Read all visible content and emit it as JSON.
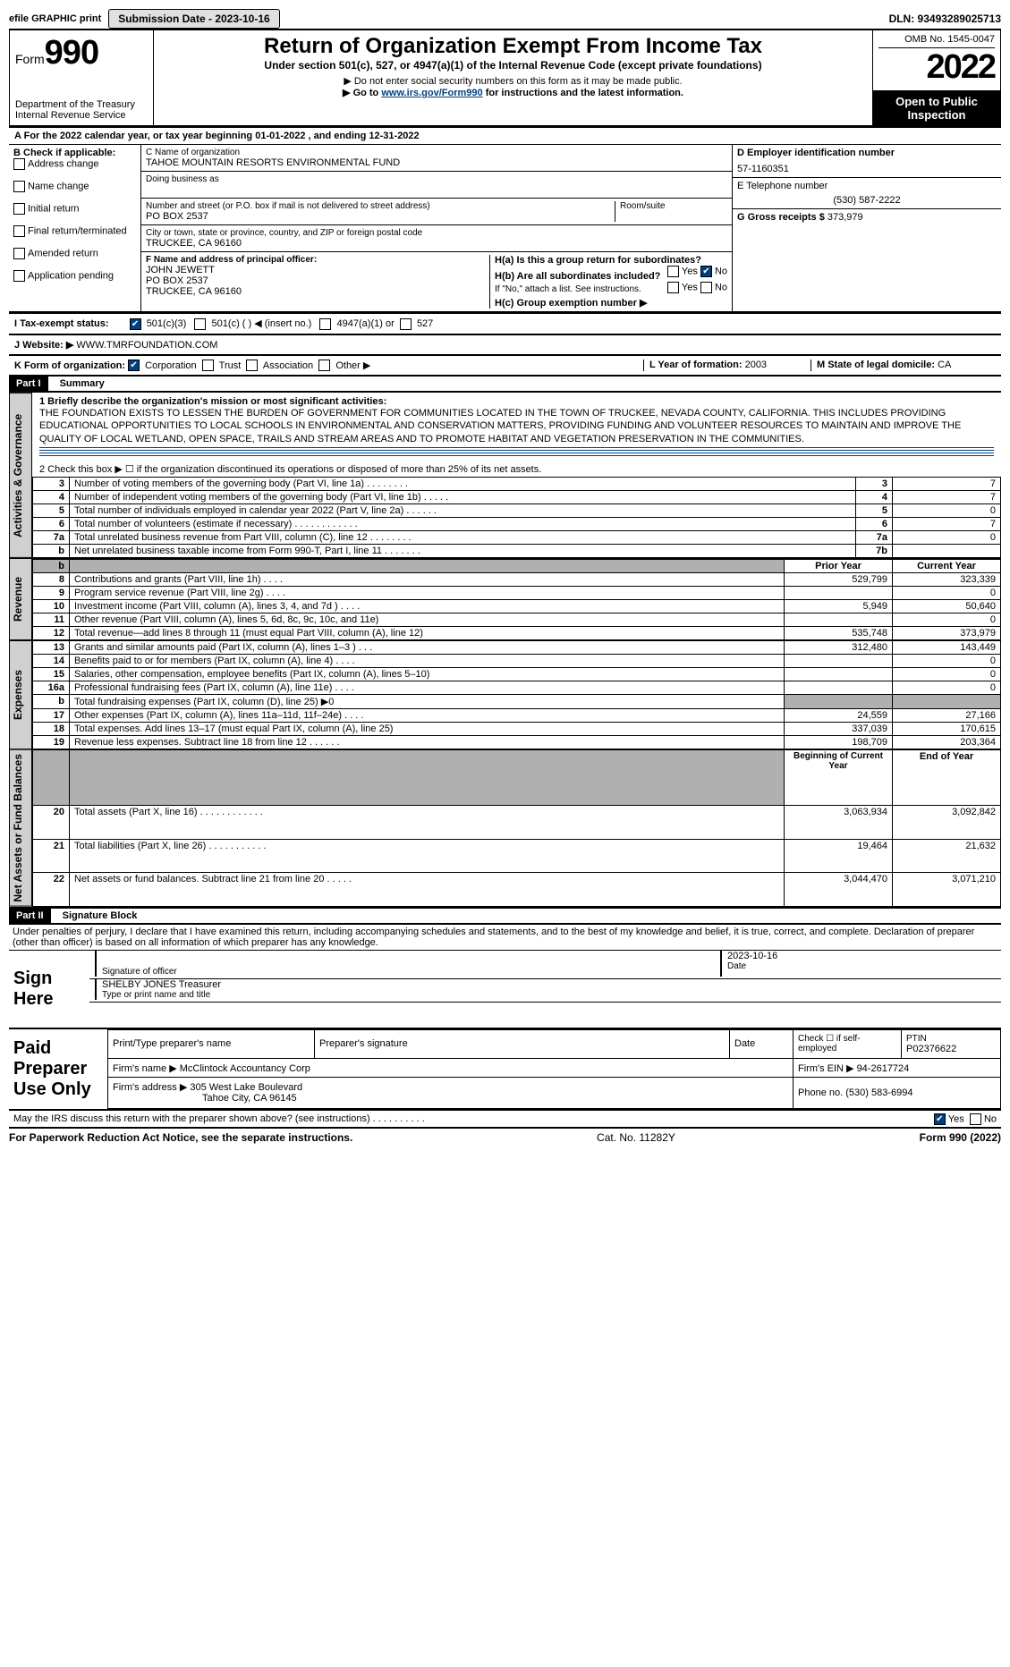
{
  "topbar": {
    "efile": "efile GRAPHIC print",
    "submission_label": "Submission Date - 2023-10-16",
    "dln": "DLN: 93493289025713"
  },
  "header": {
    "form_word": "Form",
    "form_num": "990",
    "title": "Return of Organization Exempt From Income Tax",
    "subtitle": "Under section 501(c), 527, or 4947(a)(1) of the Internal Revenue Code (except private foundations)",
    "warn1": "▶ Do not enter social security numbers on this form as it may be made public.",
    "warn2_pre": "▶ Go to ",
    "warn2_link": "www.irs.gov/Form990",
    "warn2_post": " for instructions and the latest information.",
    "dept": "Department of the Treasury\nInternal Revenue Service",
    "omb": "OMB No. 1545-0047",
    "year": "2022",
    "open": "Open to Public Inspection"
  },
  "period": {
    "line_pre": "For the 2022 calendar year, or tax year beginning ",
    "begin": "01-01-2022",
    "mid": " , and ending ",
    "end": "12-31-2022"
  },
  "B": {
    "label": "B Check if applicable:",
    "addr": "Address change",
    "name": "Name change",
    "init": "Initial return",
    "final": "Final return/terminated",
    "amend": "Amended return",
    "app": "Application pending"
  },
  "C": {
    "name_label": "C Name of organization",
    "name": "TAHOE MOUNTAIN RESORTS ENVIRONMENTAL FUND",
    "dba_label": "Doing business as",
    "street_label": "Number and street (or P.O. box if mail is not delivered to street address)",
    "street": "PO BOX 2537",
    "room_label": "Room/suite",
    "city_label": "City or town, state or province, country, and ZIP or foreign postal code",
    "city": "TRUCKEE, CA  96160"
  },
  "D": {
    "label": "D Employer identification number",
    "value": "57-1160351"
  },
  "E": {
    "label": "E Telephone number",
    "value": "(530) 587-2222"
  },
  "G": {
    "label": "G Gross receipts $",
    "value": "373,979"
  },
  "F": {
    "label": "F  Name and address of principal officer:",
    "name": "JOHN JEWETT",
    "addr1": "PO BOX 2537",
    "addr2": "TRUCKEE, CA  96160"
  },
  "H": {
    "a": "H(a)  Is this a group return for subordinates?",
    "b": "H(b)  Are all subordinates included?",
    "b_note": "If \"No,\" attach a list. See instructions.",
    "c": "H(c)  Group exemption number ▶",
    "yes": "Yes",
    "no": "No"
  },
  "I": {
    "label": "I  Tax-exempt status:",
    "c3": "501(c)(3)",
    "c": "501(c) (  ) ◀ (insert no.)",
    "a1": "4947(a)(1) or",
    "s527": "527"
  },
  "J": {
    "label": "J  Website: ▶",
    "value": "WWW.TMRFOUNDATION.COM"
  },
  "K": {
    "label": "K Form of organization:",
    "corp": "Corporation",
    "trust": "Trust",
    "assoc": "Association",
    "other": "Other ▶"
  },
  "L": {
    "label": "L Year of formation:",
    "value": "2003"
  },
  "M": {
    "label": "M State of legal domicile:",
    "value": "CA"
  },
  "partI": {
    "label": "Part I",
    "title": "Summary"
  },
  "summary": {
    "l1_label": "1  Briefly describe the organization's mission or most significant activities:",
    "mission": "THE FOUNDATION EXISTS TO LESSEN THE BURDEN OF GOVERNMENT FOR COMMUNITIES LOCATED IN THE TOWN OF TRUCKEE, NEVADA COUNTY, CALIFORNIA. THIS INCLUDES PROVIDING EDUCATIONAL OPPORTUNITIES TO LOCAL SCHOOLS IN ENVIRONMENTAL AND CONSERVATION MATTERS, PROVIDING FUNDING AND VOLUNTEER RESOURCES TO MAINTAIN AND IMPROVE THE QUALITY OF LOCAL WETLAND, OPEN SPACE, TRAILS AND STREAM AREAS AND TO PROMOTE HABITAT AND VEGETATION PRESERVATION IN THE COMMUNITIES.",
    "l2": "2   Check this box ▶ ☐  if the organization discontinued its operations or disposed of more than 25% of its net assets.",
    "rows_ag": [
      {
        "n": "3",
        "d": "Number of voting members of the governing body (Part VI, line 1a)   .    .    .    .    .    .    .    .",
        "b": "3",
        "v": "7"
      },
      {
        "n": "4",
        "d": "Number of independent voting members of the governing body (Part VI, line 1b)    .    .    .    .    .",
        "b": "4",
        "v": "7"
      },
      {
        "n": "5",
        "d": "Total number of individuals employed in calendar year 2022 (Part V, line 2a)    .    .    .    .    .    .",
        "b": "5",
        "v": "0"
      },
      {
        "n": "6",
        "d": "Total number of volunteers (estimate if necessary)   .    .    .    .    .    .    .    .    .    .    .    .",
        "b": "6",
        "v": "7"
      },
      {
        "n": "7a",
        "d": "Total unrelated business revenue from Part VIII, column (C), line 12   .    .    .    .    .    .    .    .",
        "b": "7a",
        "v": "0"
      },
      {
        "n": "b",
        "d": "Net unrelated business taxable income from Form 990-T, Part I, line 11   .    .    .    .    .    .    .",
        "b": "7b",
        "v": ""
      }
    ],
    "col_prior": "Prior Year",
    "col_current": "Current Year",
    "rows_rev": [
      {
        "n": "8",
        "d": "Contributions and grants (Part VIII, line 1h)   .    .    .    .",
        "p": "529,799",
        "c": "323,339"
      },
      {
        "n": "9",
        "d": "Program service revenue (Part VIII, line 2g)   .    .    .    .",
        "p": "",
        "c": "0"
      },
      {
        "n": "10",
        "d": "Investment income (Part VIII, column (A), lines 3, 4, and 7d )   .    .    .    .",
        "p": "5,949",
        "c": "50,640"
      },
      {
        "n": "11",
        "d": "Other revenue (Part VIII, column (A), lines 5, 6d, 8c, 9c, 10c, and 11e)",
        "p": "",
        "c": "0"
      },
      {
        "n": "12",
        "d": "Total revenue—add lines 8 through 11 (must equal Part VIII, column (A), line 12)",
        "p": "535,748",
        "c": "373,979"
      }
    ],
    "rows_exp": [
      {
        "n": "13",
        "d": "Grants and similar amounts paid (Part IX, column (A), lines 1–3 )   .    .    .",
        "p": "312,480",
        "c": "143,449"
      },
      {
        "n": "14",
        "d": "Benefits paid to or for members (Part IX, column (A), line 4)   .    .    .    .",
        "p": "",
        "c": "0"
      },
      {
        "n": "15",
        "d": "Salaries, other compensation, employee benefits (Part IX, column (A), lines 5–10)",
        "p": "",
        "c": "0"
      },
      {
        "n": "16a",
        "d": "Professional fundraising fees (Part IX, column (A), line 11e)   .    .    .    .",
        "p": "",
        "c": "0"
      },
      {
        "n": "b",
        "d": "Total fundraising expenses (Part IX, column (D), line 25) ▶0",
        "p": "gray",
        "c": "gray"
      },
      {
        "n": "17",
        "d": "Other expenses (Part IX, column (A), lines 11a–11d, 11f–24e)   .    .    .    .",
        "p": "24,559",
        "c": "27,166"
      },
      {
        "n": "18",
        "d": "Total expenses. Add lines 13–17 (must equal Part IX, column (A), line 25)",
        "p": "337,039",
        "c": "170,615"
      },
      {
        "n": "19",
        "d": "Revenue less expenses. Subtract line 18 from line 12   .    .    .    .    .    .",
        "p": "198,709",
        "c": "203,364"
      }
    ],
    "col_boy": "Beginning of Current Year",
    "col_eoy": "End of Year",
    "rows_net": [
      {
        "n": "20",
        "d": "Total assets (Part X, line 16)   .    .    .    .    .    .    .    .    .    .    .    .",
        "p": "3,063,934",
        "c": "3,092,842"
      },
      {
        "n": "21",
        "d": "Total liabilities (Part X, line 26)   .    .    .    .    .    .    .    .    .    .    .",
        "p": "19,464",
        "c": "21,632"
      },
      {
        "n": "22",
        "d": "Net assets or fund balances. Subtract line 21 from line 20   .    .    .    .    .",
        "p": "3,044,470",
        "c": "3,071,210"
      }
    ],
    "vlabel_ag": "Activities & Governance",
    "vlabel_rev": "Revenue",
    "vlabel_exp": "Expenses",
    "vlabel_net": "Net Assets or Fund Balances"
  },
  "partII": {
    "label": "Part II",
    "title": "Signature Block"
  },
  "sig": {
    "decl": "Under penalties of perjury, I declare that I have examined this return, including accompanying schedules and statements, and to the best of my knowledge and belief, it is true, correct, and complete. Declaration of preparer (other than officer) is based on all information of which preparer has any knowledge.",
    "sign_here": "Sign Here",
    "sig_officer_label": "Signature of officer",
    "date": "2023-10-16",
    "date_label": "Date",
    "name": "SHELBY JONES Treasurer",
    "name_label": "Type or print name and title"
  },
  "prep": {
    "label": "Paid Preparer Use Only",
    "h1": "Print/Type preparer's name",
    "h2": "Preparer's signature",
    "h3": "Date",
    "h4_pre": "Check ☐ if self-employed",
    "h5": "PTIN",
    "ptin": "P02376622",
    "firm_label": "Firm's name    ▶",
    "firm": "McClintock Accountancy Corp",
    "ein_label": "Firm's EIN ▶",
    "ein": "94-2617724",
    "addr_label": "Firm's address ▶",
    "addr1": "305 West Lake Boulevard",
    "addr2": "Tahoe City, CA  96145",
    "phone_label": "Phone no.",
    "phone": "(530) 583-6994"
  },
  "discuss": {
    "q": "May the IRS discuss this return with the preparer shown above? (see instructions)   .    .    .    .    .    .    .    .    .    .",
    "yes": "Yes",
    "no": "No"
  },
  "footer": {
    "left": "For Paperwork Reduction Act Notice, see the separate instructions.",
    "mid": "Cat. No. 11282Y",
    "right": "Form 990 (2022)"
  }
}
